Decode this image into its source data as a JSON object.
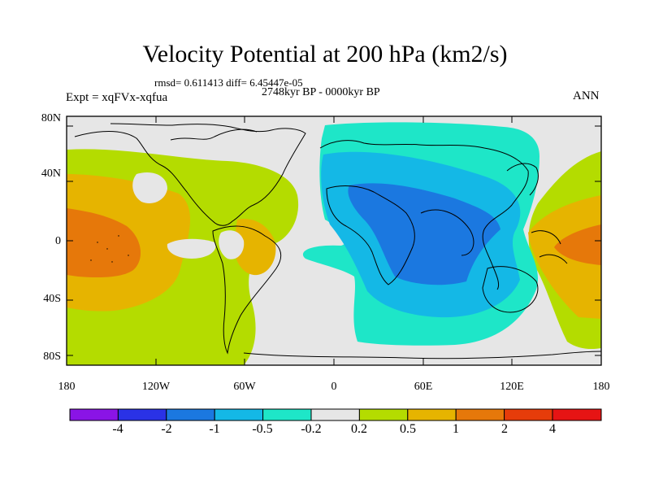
{
  "title": "Velocity Potential at 200 hPa (km2/s)",
  "stats": "rmsd= 0.611413 diff= 6.45447e-05",
  "experiment": "Expt = xqFVx-xqfua",
  "period": "2748kyr BP - 0000kyr BP",
  "season": "ANN",
  "lat_labels": [
    "80N",
    "40N",
    "0",
    "40S",
    "80S"
  ],
  "lon_labels": [
    "180",
    "120W",
    "60W",
    "0",
    "60E",
    "120E",
    "180"
  ],
  "colorbar": {
    "labels": [
      "-4",
      "-2",
      "-1",
      "-0.5",
      "-0.2",
      "0.2",
      "0.5",
      "1",
      "2",
      "4"
    ],
    "colors": [
      "#8a14e6",
      "#2a32e6",
      "#1b78e0",
      "#14b8e6",
      "#1ee6c8",
      "#e6e6e6",
      "#b4dc00",
      "#e6b400",
      "#e6780a",
      "#e63c0a",
      "#e61414"
    ]
  },
  "field_colors": {
    "neutral": "#e6e6e6",
    "pos_02": "#b4dc00",
    "pos_05": "#e6b400",
    "pos_1": "#e6780a",
    "neg_02": "#1ee6c8",
    "neg_05": "#14b8e6",
    "neg_1": "#1b78e0"
  }
}
